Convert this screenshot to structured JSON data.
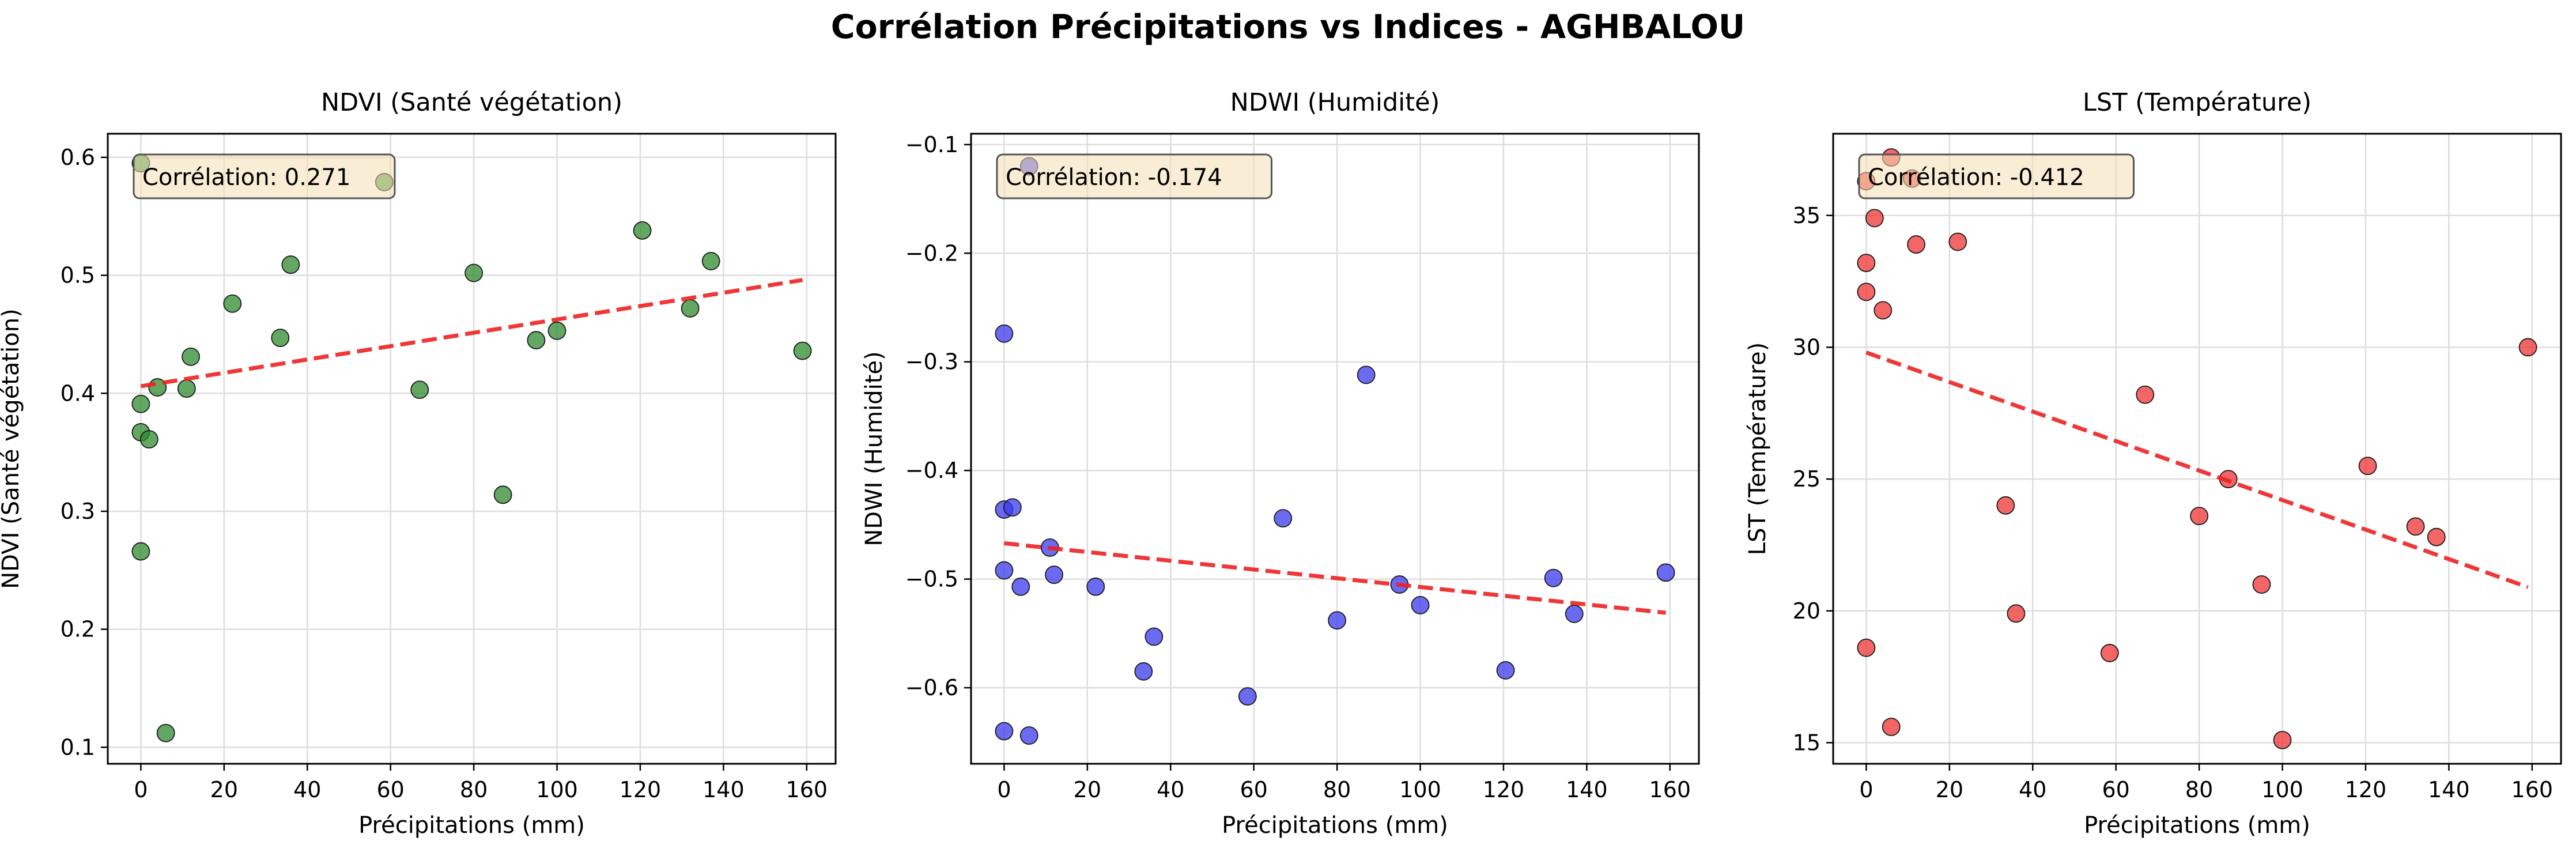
{
  "figure": {
    "title": "Corrélation Précipitations vs Indices - AGHBALOU"
  },
  "chart_data": [
    {
      "type": "scatter",
      "title": "NDVI (Santé végétation)",
      "xlabel": "Précipitations (mm)",
      "ylabel": "NDVI (Santé végétation)",
      "xlim": [
        -7.95,
        166.95
      ],
      "ylim": [
        0.086,
        0.62
      ],
      "xticks": [
        "0",
        "20",
        "40",
        "60",
        "80",
        "100",
        "120",
        "140",
        "160"
      ],
      "yticks": [
        "0.1",
        "0.2",
        "0.3",
        "0.4",
        "0.5",
        "0.6"
      ],
      "xtick_values": [
        0,
        20,
        40,
        60,
        80,
        100,
        120,
        140,
        160
      ],
      "ytick_values": [
        0.1,
        0.2,
        0.3,
        0.4,
        0.5,
        0.6
      ],
      "point_color": "#2e8b2e",
      "trend_color": "#ee2222",
      "annotation": "Corrélation: 0.271",
      "grid": true,
      "x": [
        0,
        0,
        0,
        0,
        2,
        4,
        6,
        11,
        12,
        22,
        33.5,
        36,
        58.5,
        67,
        80,
        87,
        95,
        100,
        120.5,
        132,
        137,
        159
      ],
      "y": [
        0.595,
        0.391,
        0.367,
        0.266,
        0.361,
        0.405,
        0.112,
        0.404,
        0.431,
        0.476,
        0.447,
        0.509,
        0.579,
        0.403,
        0.502,
        0.314,
        0.445,
        0.453,
        0.538,
        0.472,
        0.512,
        0.436
      ],
      "trendline": {
        "x": [
          0,
          159
        ],
        "y": [
          0.406,
          0.496
        ]
      }
    },
    {
      "type": "scatter",
      "title": "NDWI (Humidité)",
      "xlabel": "Précipitations (mm)",
      "ylabel": "NDWI (Humidité)",
      "xlim": [
        -7.95,
        166.95
      ],
      "ylim": [
        -0.67,
        -0.09
      ],
      "xticks": [
        "0",
        "20",
        "40",
        "60",
        "80",
        "100",
        "120",
        "140",
        "160"
      ],
      "yticks": [
        "−0.6",
        "−0.5",
        "−0.4",
        "−0.3",
        "−0.2",
        "−0.1"
      ],
      "xtick_values": [
        0,
        20,
        40,
        60,
        80,
        100,
        120,
        140,
        160
      ],
      "ytick_values": [
        -0.6,
        -0.5,
        -0.4,
        -0.3,
        -0.2,
        -0.1
      ],
      "point_color": "#3a3aee",
      "trend_color": "#ee2222",
      "annotation": "Corrélation: -0.174",
      "grid": true,
      "x": [
        0,
        0,
        0,
        0,
        2,
        4,
        6,
        6,
        11,
        12,
        22,
        33.5,
        36,
        58.5,
        67,
        80,
        87,
        95,
        100,
        120.5,
        132,
        137,
        159
      ],
      "y": [
        -0.274,
        -0.436,
        -0.492,
        -0.64,
        -0.434,
        -0.507,
        -0.12,
        -0.644,
        -0.471,
        -0.496,
        -0.507,
        -0.585,
        -0.553,
        -0.608,
        -0.444,
        -0.538,
        -0.312,
        -0.505,
        -0.524,
        -0.584,
        -0.499,
        -0.532,
        -0.494
      ],
      "trendline": {
        "x": [
          0,
          159
        ],
        "y": [
          -0.467,
          -0.531
        ]
      }
    },
    {
      "type": "scatter",
      "title": "LST (Température)",
      "xlabel": "Précipitations (mm)",
      "ylabel": "LST (Température)",
      "xlim": [
        -7.95,
        166.95
      ],
      "ylim": [
        14.2,
        38.1
      ],
      "xticks": [
        "0",
        "20",
        "40",
        "60",
        "80",
        "100",
        "120",
        "140",
        "160"
      ],
      "yticks": [
        "15",
        "20",
        "25",
        "30",
        "35"
      ],
      "xtick_values": [
        0,
        20,
        40,
        60,
        80,
        100,
        120,
        140,
        160
      ],
      "ytick_values": [
        15,
        20,
        25,
        30,
        35
      ],
      "point_color": "#ee3333",
      "trend_color": "#ee2222",
      "annotation": "Corrélation: -0.412",
      "grid": true,
      "x": [
        0,
        0,
        0,
        0,
        2,
        4,
        6,
        6,
        11,
        12,
        22,
        33.5,
        36,
        58.5,
        67,
        80,
        87,
        95,
        100,
        120.5,
        132,
        137,
        159
      ],
      "y": [
        36.3,
        33.2,
        32.1,
        18.6,
        34.9,
        31.4,
        37.2,
        15.6,
        36.4,
        33.9,
        34.0,
        24.0,
        19.9,
        18.4,
        28.2,
        23.6,
        25.0,
        21.0,
        15.1,
        25.5,
        23.2,
        22.8,
        30.0
      ],
      "trendline": {
        "x": [
          0,
          159
        ],
        "y": [
          29.8,
          20.9
        ]
      }
    }
  ]
}
